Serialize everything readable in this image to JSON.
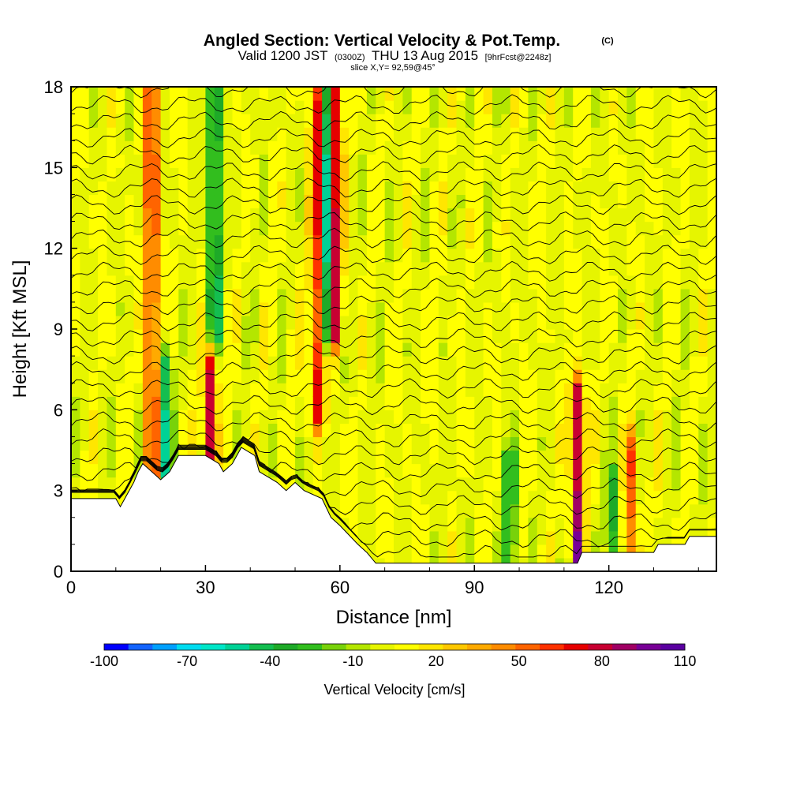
{
  "chart_data": {
    "type": "heatmap",
    "title": "Angled Section: Vertical Velocity & Pot.Temp.",
    "title_unit": "(C)",
    "subtitle": {
      "valid_prefix": "Valid 1200 JST",
      "utc": "(0300Z)",
      "date": "THU 13 Aug 2015",
      "forecast": "[9hrFcst@2248z]"
    },
    "slice_label": "slice X,Y= 92,59@45°",
    "xlabel": "Distance [nm]",
    "ylabel": "Height [Kft MSL]",
    "xlim": [
      0,
      144
    ],
    "ylim": [
      0,
      18
    ],
    "x_ticks": [
      "0",
      "30",
      "60",
      "90",
      "120"
    ],
    "x_tick_values": [
      0,
      30,
      60,
      90,
      120
    ],
    "y_ticks": [
      "0",
      "3",
      "6",
      "9",
      "12",
      "15",
      "18"
    ],
    "y_tick_values": [
      0,
      3,
      6,
      9,
      12,
      15,
      18
    ],
    "colorbar": {
      "title": "Vertical Velocity [cm/s]",
      "labels": [
        "-100",
        "-70",
        "-40",
        "-10",
        "20",
        "50",
        "80",
        "110"
      ],
      "label_values": [
        -100,
        -70,
        -40,
        -10,
        20,
        50,
        80,
        110
      ],
      "colors": [
        "#0000ff",
        "#1464ff",
        "#00a0ff",
        "#00dcf0",
        "#00e6c8",
        "#00d296",
        "#14be50",
        "#1eaa28",
        "#32be1e",
        "#78d20a",
        "#b4e600",
        "#e6f500",
        "#ffff00",
        "#ffe600",
        "#ffc800",
        "#ffaa00",
        "#ff8c00",
        "#ff6400",
        "#ff3200",
        "#e60000",
        "#c80032",
        "#a00064",
        "#780096",
        "#5a00a0"
      ]
    },
    "updraft_cores": [
      {
        "distance": 18,
        "height_min": 4.0,
        "height_max": 18,
        "w": 75
      },
      {
        "distance": 31,
        "height_min": 4.5,
        "height_max": 7.5,
        "w": 85
      },
      {
        "distance": 55,
        "height_min": 6.0,
        "height_max": 18,
        "w": 70
      },
      {
        "distance": 59,
        "height_min": 9.0,
        "height_max": 18,
        "w": 80
      },
      {
        "distance": 113,
        "height_min": 0.5,
        "height_max": 6.5,
        "w": 85
      },
      {
        "distance": 125,
        "height_min": 0.5,
        "height_max": 4.5,
        "w": 50
      }
    ],
    "downdraft_cores": [
      {
        "distance": 21,
        "height_min": 4.0,
        "height_max": 7.5,
        "w": -55
      },
      {
        "distance": 32,
        "height_min": 9,
        "height_max": 18,
        "w": -60
      },
      {
        "distance": 57,
        "height_min": 9,
        "height_max": 18,
        "w": -65
      },
      {
        "distance": 98,
        "height_min": 0.5,
        "height_max": 4,
        "w": -45
      },
      {
        "distance": 121,
        "height_min": 0.5,
        "height_max": 3,
        "w": -40
      }
    ],
    "terrain_height_kft": [
      [
        0,
        2.7
      ],
      [
        10,
        2.7
      ],
      [
        11,
        2.4
      ],
      [
        12,
        2.7
      ],
      [
        13,
        3.0
      ],
      [
        14,
        3.3
      ],
      [
        15,
        3.7
      ],
      [
        16,
        4.0
      ],
      [
        18,
        3.7
      ],
      [
        20,
        3.4
      ],
      [
        22,
        3.7
      ],
      [
        24,
        4.3
      ],
      [
        30,
        4.3
      ],
      [
        33,
        4.0
      ],
      [
        34,
        3.7
      ],
      [
        36,
        4.0
      ],
      [
        38,
        4.6
      ],
      [
        41,
        4.3
      ],
      [
        42,
        3.7
      ],
      [
        46,
        3.3
      ],
      [
        48,
        3.0
      ],
      [
        50,
        3.3
      ],
      [
        52,
        3.0
      ],
      [
        56,
        2.7
      ],
      [
        58,
        2.0
      ],
      [
        60,
        1.7
      ],
      [
        64,
        1.0
      ],
      [
        66,
        0.7
      ],
      [
        68,
        0.3
      ],
      [
        113,
        0.3
      ],
      [
        114,
        0.7
      ],
      [
        130,
        0.7
      ],
      [
        131,
        1.0
      ],
      [
        137,
        1.0
      ],
      [
        138,
        1.3
      ],
      [
        144,
        1.3
      ]
    ],
    "theta_contours": "black potential temperature isolines, approx. every 1 C, spaced ~0.6 kft"
  }
}
